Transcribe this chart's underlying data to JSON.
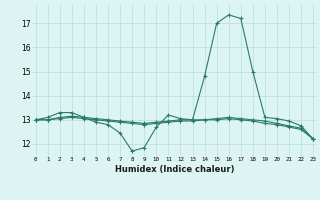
{
  "xlabel": "Humidex (Indice chaleur)",
  "x": [
    0,
    1,
    2,
    3,
    4,
    5,
    6,
    7,
    8,
    9,
    10,
    11,
    12,
    13,
    14,
    15,
    16,
    17,
    18,
    19,
    20,
    21,
    22,
    23
  ],
  "line1": [
    13.0,
    13.1,
    13.3,
    13.3,
    13.1,
    12.9,
    12.8,
    12.45,
    11.7,
    11.85,
    12.7,
    13.2,
    13.05,
    13.0,
    14.8,
    17.0,
    17.35,
    17.2,
    15.0,
    13.1,
    13.05,
    12.95,
    12.75,
    12.2
  ],
  "line2": [
    13.0,
    13.0,
    13.1,
    13.15,
    13.1,
    13.05,
    13.0,
    12.95,
    12.9,
    12.85,
    12.9,
    12.95,
    13.0,
    13.0,
    13.0,
    13.05,
    13.1,
    13.05,
    13.0,
    12.95,
    12.85,
    12.75,
    12.65,
    12.2
  ],
  "line3": [
    13.0,
    13.0,
    13.05,
    13.1,
    13.05,
    13.0,
    12.95,
    12.9,
    12.85,
    12.8,
    12.85,
    12.9,
    12.95,
    12.95,
    13.0,
    13.0,
    13.05,
    13.0,
    12.95,
    12.85,
    12.8,
    12.7,
    12.6,
    12.2
  ],
  "line_color": "#2a7a6a",
  "bg_color": "#ddf5f2",
  "grid_color": "#b8ddd8",
  "ylim": [
    11.5,
    17.8
  ],
  "yticks": [
    12,
    13,
    14,
    15,
    16,
    17
  ],
  "xlim": [
    -0.3,
    23.3
  ]
}
